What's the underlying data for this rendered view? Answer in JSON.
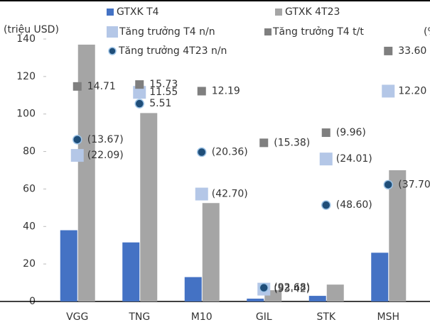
{
  "chart_data": {
    "type": "bar",
    "y_label": "(triệu USD)",
    "y2_label": "(%)",
    "categories": [
      "VGG",
      "TNG",
      "M10",
      "GIL",
      "STK",
      "MSH"
    ],
    "ylim": [
      0,
      140
    ],
    "yticks": [
      0,
      20,
      40,
      60,
      80,
      100,
      120,
      140
    ],
    "y2lim": [
      -100,
      40
    ],
    "series": [
      {
        "name": "GTXK T4",
        "color": "#4472c4",
        "values": [
          38,
          31.5,
          13,
          1.5,
          3,
          26
        ]
      },
      {
        "name": "GTXK 4T23",
        "color": "#a5a5a5",
        "values": [
          137,
          100.5,
          52.5,
          6,
          9,
          70
        ]
      },
      {
        "name": "Tăng trưởng T4 n/n",
        "type": "scatter",
        "marker": "square",
        "axis": "y2",
        "color": "#b4c7e7",
        "values": [
          -22.09,
          11.55,
          -42.7,
          -93.42,
          -24.01,
          12.2
        ],
        "value_labels": [
          "(22.09)",
          "11.55",
          "(42.70)",
          "(93.42)",
          "(24.01)",
          "12.20"
        ]
      },
      {
        "name": "Tăng trưởng T4 t/t",
        "type": "scatter",
        "marker": "small-square",
        "axis": "y2",
        "color": "#7f7f7f",
        "negative_label_color": "#ff0000",
        "values": [
          14.71,
          15.73,
          12.19,
          -15.38,
          -9.96,
          33.6
        ],
        "value_labels": [
          "14.71",
          "15.73",
          "12.19",
          "(15.38)",
          "(9.96)",
          "33.60"
        ]
      },
      {
        "name": "Tăng trưởng 4T23 n/n",
        "type": "scatter",
        "marker": "circle",
        "axis": "y2",
        "color": "#1f4e79",
        "negative_label_color": "#ff0000",
        "values": [
          -13.67,
          5.51,
          -20.36,
          -92.68,
          -48.6,
          -37.7
        ],
        "value_labels": [
          "(13.67)",
          "5.51",
          "(20.36)",
          "(92.68)",
          "(48.60)",
          "(37.70)"
        ]
      }
    ]
  }
}
